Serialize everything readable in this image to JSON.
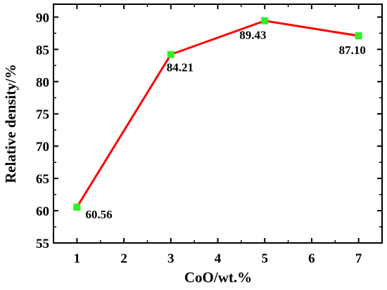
{
  "chart_data": {
    "type": "line",
    "x": [
      1,
      3,
      5,
      7
    ],
    "y": [
      60.56,
      84.21,
      89.43,
      87.1
    ],
    "data_labels": [
      "60.56",
      "84.21",
      "89.43",
      "87.10"
    ],
    "xlabel": "CoO/wt.%",
    "ylabel": "Relative density/%",
    "xlim": [
      0.5,
      7.5
    ],
    "ylim": [
      55,
      92
    ],
    "xticks": [
      1,
      2,
      3,
      4,
      5,
      6,
      7
    ],
    "xtick_labels": [
      "1",
      "2",
      "3",
      "4",
      "5",
      "6",
      "7"
    ],
    "yticks": [
      55,
      60,
      65,
      70,
      75,
      80,
      85,
      90
    ],
    "ytick_labels": [
      "55",
      "60",
      "65",
      "70",
      "75",
      "80",
      "85",
      "90"
    ],
    "grid": false,
    "legend": "none",
    "line_color": "#ff0000",
    "marker_color": "#33ee22",
    "marker": "square"
  }
}
